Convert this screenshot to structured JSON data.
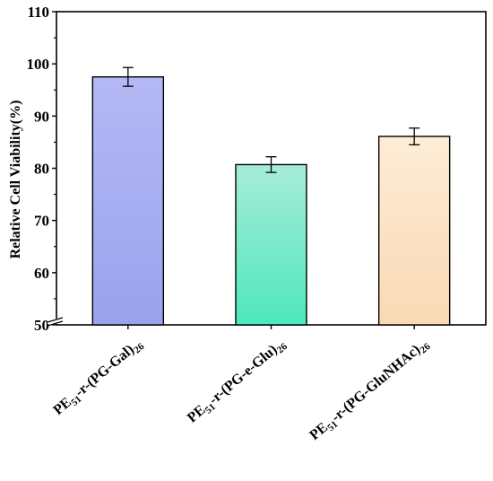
{
  "chart_data": {
    "type": "bar",
    "title": "",
    "xlabel": "",
    "ylabel": "Relative Cell Viability(%)",
    "ylim": [
      50,
      110
    ],
    "yticks": [
      50,
      60,
      70,
      80,
      90,
      100,
      110
    ],
    "y_axis_break": true,
    "grid": false,
    "categories": [
      {
        "main": "PE",
        "sub1": "51",
        "mid": "-r-(PG-Gal)",
        "sub2": "26"
      },
      {
        "main": "PE",
        "sub1": "51",
        "mid": "-r-(PG-e-Glu)",
        "sub2": "26"
      },
      {
        "main": "PE",
        "sub1": "51",
        "mid": "-r-(PG-GluNHAc)",
        "sub2": "26"
      }
    ],
    "values": [
      97.5,
      80.7,
      86.1
    ],
    "errors": [
      1.8,
      1.5,
      1.6
    ],
    "colors": [
      {
        "top": "#b4b8f5",
        "bottom": "#9aa2ee"
      },
      {
        "top": "#a6ecd8",
        "bottom": "#4de8bd"
      },
      {
        "top": "#fdecd6",
        "bottom": "#fad9b4"
      }
    ]
  }
}
